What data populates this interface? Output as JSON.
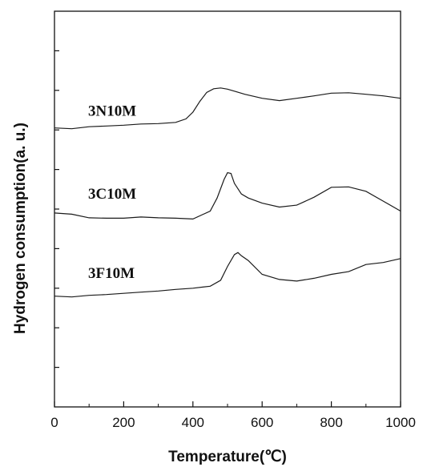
{
  "chart_data": {
    "type": "line",
    "xlabel": "Temperature(℃)",
    "ylabel": "Hydrogen consumption(a. u.)",
    "xlim": [
      0,
      1000
    ],
    "x_ticks": [
      0,
      200,
      400,
      600,
      800,
      1000
    ],
    "x_tick_labels": [
      "0",
      "200",
      "400",
      "600",
      "800",
      "1000"
    ],
    "y_minor_tick_count": 10,
    "ylim": [
      0,
      10
    ],
    "grid": false,
    "series": [
      {
        "name": "3N10M",
        "x": [
          0,
          50,
          100,
          150,
          200,
          250,
          300,
          350,
          380,
          400,
          420,
          440,
          460,
          480,
          500,
          520,
          550,
          600,
          650,
          700,
          750,
          800,
          850,
          900,
          950,
          1000
        ],
        "y": [
          7.05,
          7.03,
          7.08,
          7.1,
          7.12,
          7.15,
          7.16,
          7.19,
          7.28,
          7.45,
          7.72,
          7.95,
          8.04,
          8.06,
          8.03,
          7.98,
          7.9,
          7.8,
          7.74,
          7.8,
          7.86,
          7.93,
          7.94,
          7.9,
          7.86,
          7.8
        ]
      },
      {
        "name": "3C10M",
        "x": [
          0,
          50,
          100,
          150,
          200,
          250,
          300,
          350,
          400,
          450,
          470,
          490,
          500,
          510,
          520,
          540,
          560,
          600,
          650,
          700,
          750,
          800,
          850,
          900,
          950,
          1000
        ],
        "y": [
          4.9,
          4.87,
          4.78,
          4.77,
          4.77,
          4.8,
          4.78,
          4.77,
          4.75,
          4.95,
          5.28,
          5.75,
          5.92,
          5.9,
          5.65,
          5.38,
          5.28,
          5.15,
          5.05,
          5.1,
          5.3,
          5.55,
          5.56,
          5.45,
          5.2,
          4.95
        ]
      },
      {
        "name": "3F10M",
        "x": [
          0,
          50,
          100,
          150,
          200,
          250,
          300,
          350,
          400,
          450,
          480,
          500,
          520,
          530,
          540,
          560,
          600,
          650,
          700,
          750,
          800,
          850,
          900,
          950,
          1000
        ],
        "y": [
          2.8,
          2.78,
          2.82,
          2.84,
          2.87,
          2.9,
          2.93,
          2.97,
          3.0,
          3.05,
          3.2,
          3.55,
          3.85,
          3.9,
          3.82,
          3.7,
          3.35,
          3.22,
          3.18,
          3.25,
          3.35,
          3.42,
          3.6,
          3.65,
          3.75
        ]
      }
    ]
  }
}
